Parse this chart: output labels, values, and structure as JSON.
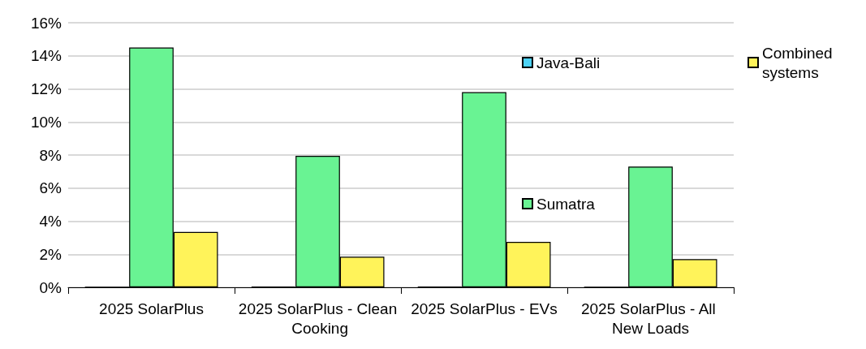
{
  "chart_data": {
    "type": "bar",
    "categories": [
      "2025 SolarPlus",
      "2025 SolarPlus - Clean Cooking",
      "2025 SolarPlus - EVs",
      "2025 SolarPlus - All New Loads"
    ],
    "series": [
      {
        "name": "Java-Bali",
        "color": "#4dd2f5",
        "values": [
          0.02,
          0.04,
          0.03,
          0.02
        ]
      },
      {
        "name": "Sumatra",
        "color": "#69f393",
        "values": [
          14.5,
          7.95,
          11.8,
          7.3
        ]
      },
      {
        "name": "Combined systems",
        "color": "#fff35a",
        "values": [
          3.35,
          1.85,
          2.75,
          1.7
        ]
      }
    ],
    "ylim": [
      0,
      16
    ],
    "yticks": [
      {
        "value": 0,
        "label": "0%"
      },
      {
        "value": 2,
        "label": "2%"
      },
      {
        "value": 4,
        "label": "4%"
      },
      {
        "value": 6,
        "label": "6%"
      },
      {
        "value": 8,
        "label": "8%"
      },
      {
        "value": 10,
        "label": "10%"
      },
      {
        "value": 12,
        "label": "12%"
      },
      {
        "value": 14,
        "label": "14%"
      },
      {
        "value": 16,
        "label": "16%"
      }
    ],
    "grid": "y",
    "legend": "right"
  }
}
